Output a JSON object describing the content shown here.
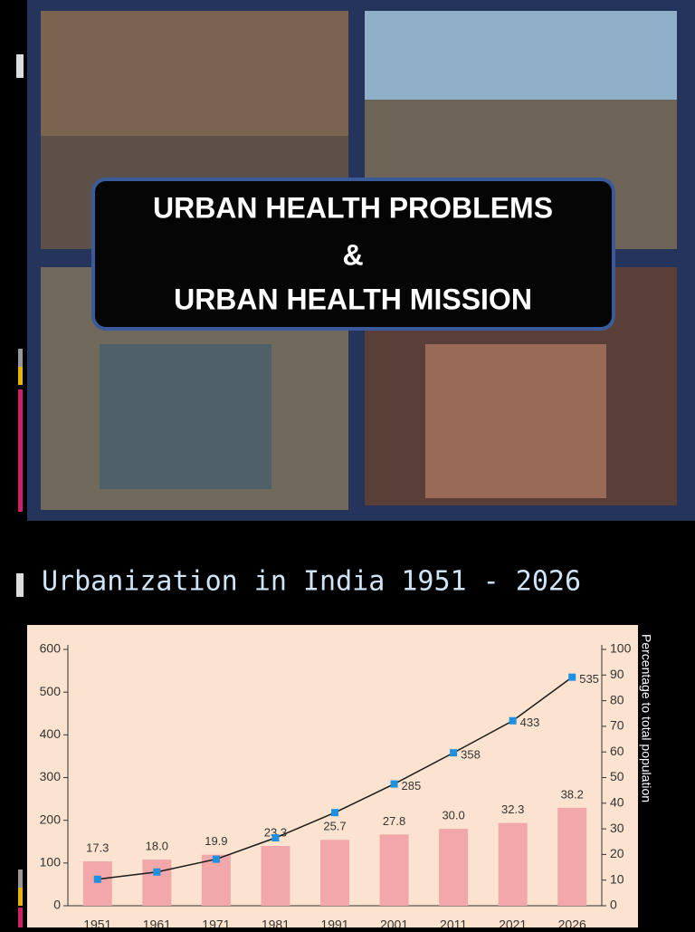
{
  "slide": {
    "title_lines": [
      "URBAN HEALTH PROBLEMS",
      "&",
      "URBAN HEALTH MISSION"
    ]
  },
  "chart_data": {
    "type": "combo",
    "title": "Urbanization in India 1951 - 2026",
    "y2_label": "Percentage to total population",
    "categories": [
      "1951",
      "1961",
      "1971",
      "1981",
      "1991",
      "2001",
      "2011",
      "2021",
      "2026"
    ],
    "ylim": [
      0,
      600
    ],
    "yticks": [
      0,
      100,
      200,
      300,
      400,
      500,
      600
    ],
    "y2lim": [
      0,
      100
    ],
    "y2ticks": [
      0,
      10,
      20,
      30,
      40,
      50,
      60,
      70,
      80,
      90,
      100
    ],
    "series": [
      {
        "type": "bar",
        "axis": "y2",
        "color": "#f2a7aa",
        "values": [
          17.3,
          18.0,
          19.9,
          23.3,
          25.7,
          27.8,
          30.0,
          32.3,
          38.2
        ],
        "value_labels": [
          "17.3",
          "18.0",
          "19.9",
          "23.3",
          "25.7",
          "27.8",
          "30.0",
          "32.3",
          "38.2"
        ]
      },
      {
        "type": "line",
        "color": "#1a1a1a",
        "marker_color": "#1e90e0",
        "values": [
          62,
          79,
          109,
          159,
          218,
          285,
          358,
          433,
          535
        ],
        "value_labels": [
          null,
          null,
          null,
          null,
          null,
          "285",
          "358",
          "433",
          "535"
        ]
      }
    ]
  }
}
